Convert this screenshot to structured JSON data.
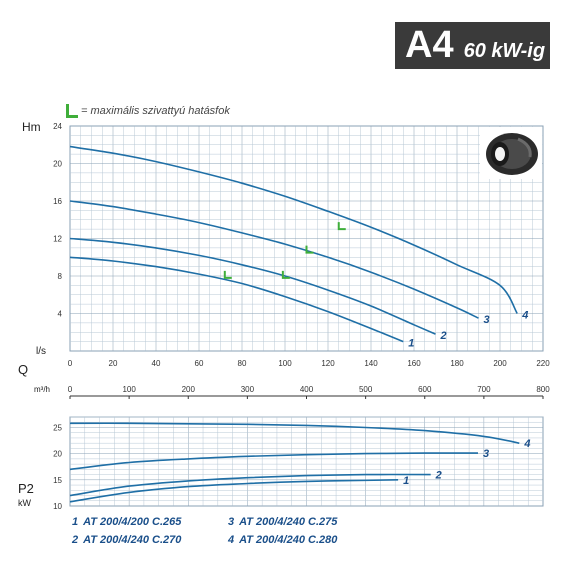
{
  "header": {
    "model_code": "A4",
    "power_label": "60 kW-ig"
  },
  "legend_note": {
    "text": "= maximális szivattyú hatásfok",
    "marker_color": "#3fae3a"
  },
  "colors": {
    "curve": "#1f6fa6",
    "grid": "#b8c8d6",
    "grid_major": "#8aa0b4",
    "label": "#1a4f8a",
    "eff_marker": "#3fae3a"
  },
  "chart_data": [
    {
      "type": "line",
      "title": "",
      "ylabel": "Hm",
      "xlabel": "l/s",
      "xlim": [
        0,
        220
      ],
      "ylim": [
        0,
        24
      ],
      "x_ticks": [
        0,
        20,
        40,
        60,
        80,
        100,
        120,
        140,
        160,
        180,
        200,
        220
      ],
      "y_ticks": [
        4,
        8,
        12,
        16,
        20,
        24
      ],
      "secondary_x_axis": {
        "label": "Q",
        "unit": "m³/h",
        "ticks": [
          0,
          100,
          200,
          300,
          400,
          500,
          600,
          700,
          800
        ]
      },
      "series": [
        {
          "name": "1",
          "x": [
            0,
            20,
            40,
            60,
            80,
            100,
            120,
            140,
            155
          ],
          "y": [
            10,
            9.6,
            9.0,
            8.2,
            7.2,
            5.8,
            4.2,
            2.4,
            1.0
          ]
        },
        {
          "name": "2",
          "x": [
            0,
            20,
            40,
            60,
            80,
            100,
            120,
            140,
            160,
            170
          ],
          "y": [
            12,
            11.6,
            11.0,
            10.2,
            9.2,
            8.0,
            6.5,
            4.8,
            2.8,
            1.8
          ]
        },
        {
          "name": "3",
          "x": [
            0,
            20,
            40,
            60,
            80,
            100,
            120,
            140,
            160,
            180,
            190
          ],
          "y": [
            16,
            15.4,
            14.6,
            13.7,
            12.6,
            11.4,
            10.0,
            8.4,
            6.6,
            4.6,
            3.5
          ]
        },
        {
          "name": "4",
          "x": [
            0,
            20,
            40,
            60,
            80,
            100,
            120,
            140,
            160,
            180,
            200,
            208
          ],
          "y": [
            21.8,
            21.1,
            20.2,
            19.1,
            17.9,
            16.5,
            14.9,
            13.2,
            11.3,
            9.2,
            7.0,
            4.0
          ]
        }
      ],
      "efficiency_points": [
        {
          "series": "1",
          "x": 72,
          "y": 7.8
        },
        {
          "series": "2",
          "x": 99,
          "y": 7.8
        },
        {
          "series": "3",
          "x": 110,
          "y": 10.5
        },
        {
          "series": "4",
          "x": 125,
          "y": 13.0
        }
      ]
    },
    {
      "type": "line",
      "title": "",
      "ylabel": "P2",
      "yunit": "kW",
      "xlim": [
        0,
        800
      ],
      "ylim": [
        10,
        27
      ],
      "y_ticks": [
        10,
        15,
        20,
        25
      ],
      "series": [
        {
          "name": "1",
          "x": [
            0,
            100,
            200,
            300,
            400,
            500,
            555
          ],
          "y": [
            10.8,
            12.6,
            13.7,
            14.3,
            14.7,
            14.9,
            15.0
          ]
        },
        {
          "name": "2",
          "x": [
            0,
            100,
            200,
            300,
            400,
            500,
            610
          ],
          "y": [
            12.0,
            13.8,
            14.8,
            15.4,
            15.8,
            16.0,
            16.0
          ]
        },
        {
          "name": "3",
          "x": [
            0,
            100,
            200,
            300,
            400,
            500,
            600,
            690
          ],
          "y": [
            17.0,
            18.3,
            19.0,
            19.5,
            19.8,
            20.0,
            20.1,
            20.1
          ]
        },
        {
          "name": "4",
          "x": [
            0,
            100,
            200,
            300,
            400,
            500,
            600,
            700,
            760
          ],
          "y": [
            25.8,
            25.8,
            25.7,
            25.6,
            25.4,
            25.0,
            24.4,
            23.3,
            22.0
          ]
        }
      ]
    }
  ],
  "models": [
    {
      "num": "1",
      "name": "AT 200/4/200 C.265"
    },
    {
      "num": "2",
      "name": "AT 200/4/240 C.270"
    },
    {
      "num": "3",
      "name": "AT 200/4/240 C.275"
    },
    {
      "num": "4",
      "name": "AT 200/4/240 C.280"
    }
  ]
}
